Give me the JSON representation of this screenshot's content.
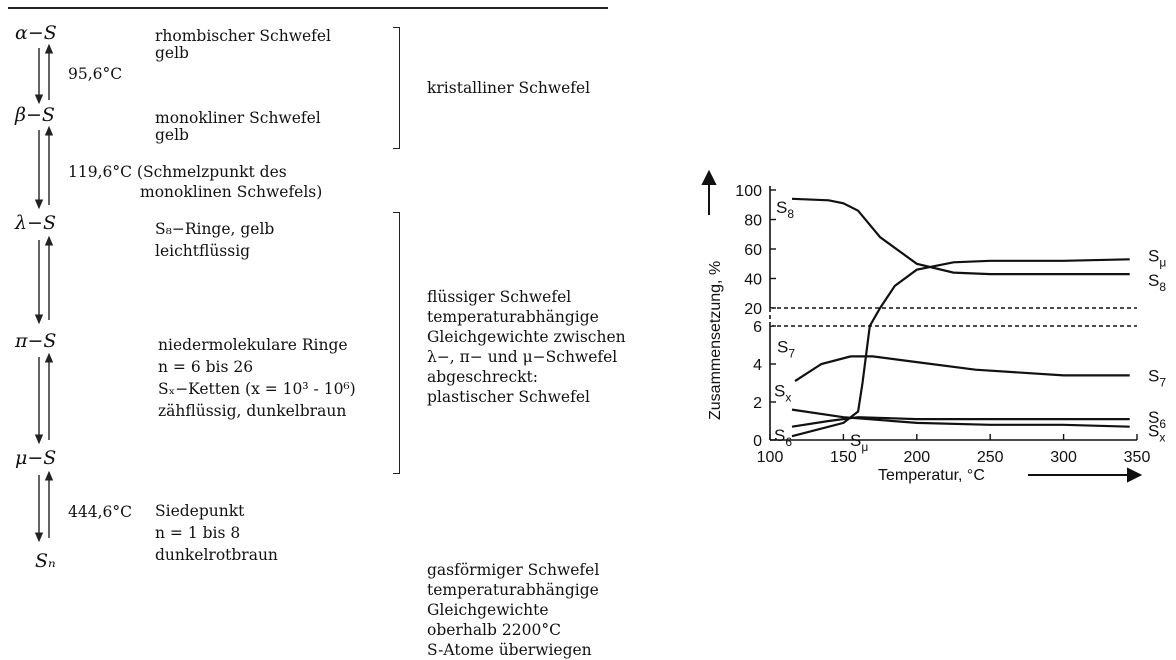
{
  "scheme": {
    "states": [
      {
        "id": "alpha",
        "symbol": "α−S",
        "lines": [
          "rhombischer Schwefel",
          "gelb"
        ]
      },
      {
        "id": "beta",
        "symbol": "β−S",
        "lines": [
          "monokliner Schwefel",
          "gelb"
        ]
      },
      {
        "id": "lambda",
        "symbol": "λ−S",
        "lines": [
          "S₈−Ringe, gelb",
          "leichtflüssig"
        ]
      },
      {
        "id": "pi",
        "symbol": "π−S",
        "lines": [
          "niedermolekulare Ringe",
          "n = 6 bis 26",
          "Sₓ−Ketten (x = 10³ - 10⁶)",
          "zähflüssig, dunkelbraun"
        ]
      },
      {
        "id": "mu",
        "symbol": "μ−S",
        "lines": []
      },
      {
        "id": "n",
        "symbol": "Sₙ",
        "lines": [
          "Siedepunkt",
          "n = 1 bis 8",
          "dunkelrotbraun"
        ]
      }
    ],
    "transitions": [
      {
        "between": "alpha-beta",
        "temp": "95,6°C",
        "note": ""
      },
      {
        "between": "beta-lambda",
        "temp": "119,6°C",
        "note": "(Schmelzpunkt des",
        "note2": "monoklinen Schwefels)"
      },
      {
        "between": "mu-n",
        "temp": "444,6°C",
        "note": ""
      }
    ],
    "groups": [
      {
        "lines": [
          "kristalliner Schwefel"
        ]
      },
      {
        "lines": [
          "flüssiger Schwefel",
          "temperaturabhängige",
          "Gleichgewichte zwischen",
          "λ−, π− und μ−Schwefel",
          "abgeschreckt:",
          "plastischer Schwefel"
        ]
      },
      {
        "lines": [
          "gasförmiger Schwefel",
          "temperaturabhängige",
          "Gleichgewichte",
          "oberhalb 2200°C",
          "S-Atome überwiegen"
        ]
      }
    ]
  },
  "chart_data": {
    "type": "line",
    "xlabel": "Temperatur, °C",
    "ylabel": "Zusammensetzung, %",
    "xlim": [
      100,
      350
    ],
    "x_ticks": [
      "100",
      "150",
      "200",
      "250",
      "300",
      "350"
    ],
    "y_ticks": [
      "0",
      "2",
      "4",
      "6",
      "20",
      "40",
      "60",
      "80",
      "100"
    ],
    "y_scale": "broken: 0–6 lower panel, 20–100 upper panel",
    "dashed_reference_lines": [
      20,
      6
    ],
    "series": [
      {
        "name": "S8",
        "label_left": "S8",
        "label_right": "S8",
        "x": [
          115,
          140,
          150,
          160,
          175,
          200,
          225,
          250,
          300,
          345
        ],
        "y": [
          94,
          93,
          91,
          86,
          68,
          50,
          44,
          43,
          43,
          43
        ]
      },
      {
        "name": "Sμ",
        "label_left": "Sμ",
        "label_right": "Sμ",
        "x": [
          115,
          150,
          160,
          163,
          168,
          175,
          185,
          200,
          225,
          250,
          300,
          345
        ],
        "y": [
          0.2,
          0.9,
          1.5,
          3,
          6,
          20,
          35,
          46,
          51,
          52,
          52,
          53
        ]
      },
      {
        "name": "S7",
        "label_left": "S7",
        "label_right": "S7",
        "x": [
          117,
          135,
          155,
          170,
          200,
          240,
          300,
          345
        ],
        "y": [
          3.1,
          4.0,
          4.4,
          4.4,
          4.1,
          3.7,
          3.4,
          3.4
        ]
      },
      {
        "name": "S6",
        "label_left": "S6",
        "label_right": "S6",
        "x": [
          115,
          140,
          160,
          200,
          250,
          300,
          345
        ],
        "y": [
          0.7,
          1.0,
          1.2,
          1.1,
          1.1,
          1.1,
          1.1
        ]
      },
      {
        "name": "Sx",
        "label_left": "Sx",
        "label_right": "Sx",
        "x": [
          115,
          150,
          200,
          250,
          300,
          345
        ],
        "y": [
          1.6,
          1.2,
          0.9,
          0.8,
          0.8,
          0.7
        ]
      }
    ]
  }
}
